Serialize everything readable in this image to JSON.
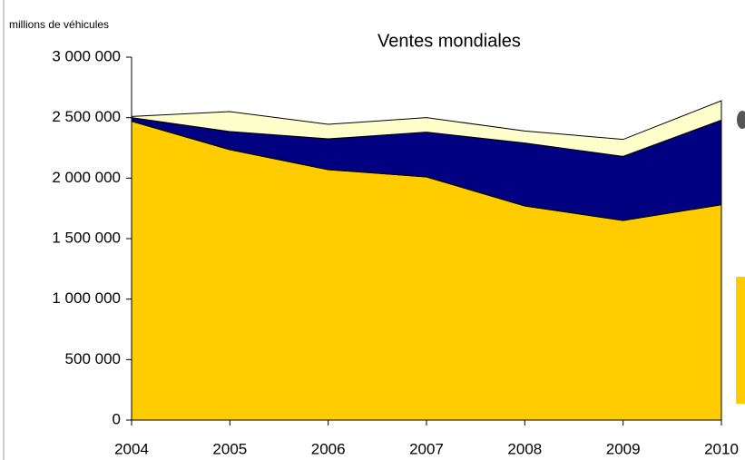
{
  "chart_data": {
    "type": "stacked-area",
    "title": "Ventes mondiales",
    "y_axis_label": "millions de véhicules",
    "categories": [
      "2004",
      "2005",
      "2006",
      "2007",
      "2008",
      "2009",
      "2010"
    ],
    "series": [
      {
        "color": "#ffcc00",
        "values": [
          2470000,
          2235000,
          2070000,
          2010000,
          1770000,
          1650000,
          1780000
        ]
      },
      {
        "color": "#000080",
        "values": [
          30000,
          150000,
          255000,
          370000,
          520000,
          530000,
          700000
        ]
      },
      {
        "color": "#ffffcc",
        "values": [
          10000,
          165000,
          120000,
          120000,
          100000,
          140000,
          160000
        ]
      }
    ],
    "ylim": [
      0,
      3000000
    ],
    "yticks": [
      0,
      {
        "value": 500000,
        "label": "500 000"
      },
      {
        "value": 1000000,
        "label": "1 000 000"
      },
      {
        "value": 1500000,
        "label": "1 500 000"
      },
      {
        "value": 2000000,
        "label": "2 000 000"
      },
      {
        "value": 2500000,
        "label": "2 500 000"
      },
      {
        "value": 3000000,
        "label": "3 000 000"
      }
    ],
    "grid": false
  }
}
